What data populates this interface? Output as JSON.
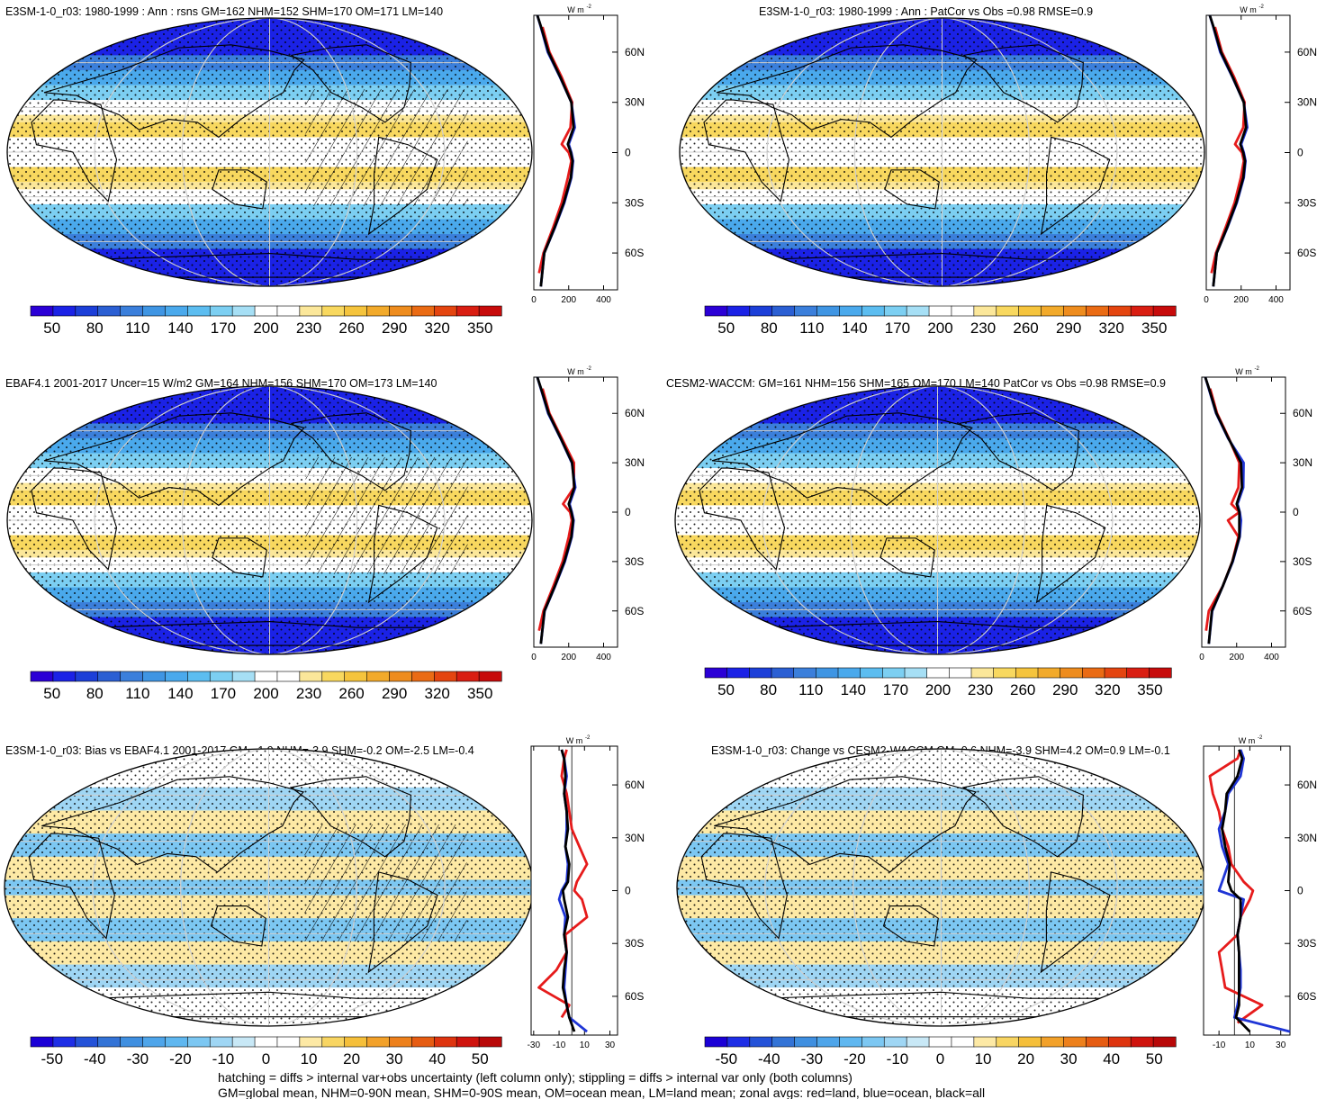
{
  "figure": {
    "footer_line1": "hatching = diffs > internal var+obs uncertainty (left column only); stippling = diffs > internal var only (both columns)",
    "footer_line2": "GM=global mean, NHM=0-90N mean, SHM=0-90S mean, OM=ocean mean, LM=land mean; zonal avgs: red=land, blue=ocean, black=all"
  },
  "chart_data": [
    {
      "type": "heatmap",
      "title": "E3SM-1-0_r03: 1980-1999 : Ann : rsns GM=162 NHM=152 SHM=170 OM=171 LM=140",
      "projection": "robinson",
      "colorbar_labels": [
        "50",
        "80",
        "110",
        "140",
        "170",
        "200",
        "230",
        "260",
        "290",
        "320",
        "350"
      ],
      "colorbar_range": [
        35,
        365
      ],
      "hatching": true,
      "zonal_panel": {
        "type": "line",
        "unit_label": "W m",
        "x_ticks": [
          "0",
          "200",
          "400"
        ],
        "x_range": [
          0,
          480
        ],
        "lat_labels": [
          "60N",
          "30N",
          "0",
          "30S",
          "60S"
        ],
        "lat_values": [
          60,
          30,
          0,
          -30,
          -60
        ],
        "lat_range": [
          -82,
          82
        ],
        "series": [
          {
            "name": "land",
            "color": "#e61b1b",
            "lat": [
              -72,
              -60,
              -45,
              -30,
              -15,
              -5,
              0,
              5,
              15,
              30,
              45,
              60,
              75
            ],
            "values": [
              30,
              55,
              110,
              160,
              195,
              215,
              200,
              160,
              210,
              220,
              160,
              90,
              50
            ]
          },
          {
            "name": "ocean",
            "color": "#1f35d6",
            "lat": [
              -80,
              -60,
              -45,
              -30,
              -15,
              -5,
              0,
              5,
              15,
              30,
              45,
              60,
              75,
              82
            ],
            "values": [
              40,
              60,
              120,
              175,
              215,
              225,
              215,
              200,
              235,
              215,
              150,
              80,
              40,
              20
            ]
          },
          {
            "name": "all",
            "color": "#000000",
            "lat": [
              -80,
              -60,
              -45,
              -30,
              -15,
              -5,
              0,
              5,
              15,
              30,
              45,
              60,
              75,
              82
            ],
            "values": [
              40,
              60,
              118,
              172,
              212,
              222,
              212,
              195,
              228,
              215,
              152,
              84,
              42,
              20
            ]
          }
        ]
      }
    },
    {
      "type": "heatmap",
      "title": "E3SM-1-0_r03: 1980-1999 : Ann : PatCor vs Obs =0.98 RMSE=0.9",
      "projection": "robinson",
      "colorbar_labels": [
        "50",
        "80",
        "110",
        "140",
        "170",
        "200",
        "230",
        "260",
        "290",
        "320",
        "350"
      ],
      "colorbar_range": [
        35,
        365
      ],
      "hatching": false,
      "zonal_panel": {
        "type": "line",
        "unit_label": "W m",
        "x_ticks": [
          "0",
          "200",
          "400"
        ],
        "x_range": [
          0,
          480
        ],
        "lat_labels": [
          "60N",
          "30N",
          "0",
          "30S",
          "60S"
        ],
        "lat_values": [
          60,
          30,
          0,
          -30,
          -60
        ],
        "lat_range": [
          -82,
          82
        ],
        "series": [
          {
            "name": "land",
            "color": "#e61b1b",
            "lat": [
              -72,
              -60,
              -45,
              -30,
              -15,
              -5,
              0,
              5,
              15,
              30,
              45,
              60,
              75
            ],
            "values": [
              30,
              55,
              110,
              162,
              198,
              215,
              205,
              165,
              212,
              220,
              160,
              90,
              50
            ]
          },
          {
            "name": "ocean",
            "color": "#1f35d6",
            "lat": [
              -80,
              -60,
              -45,
              -30,
              -15,
              -5,
              0,
              5,
              15,
              30,
              45,
              60,
              75,
              82
            ],
            "values": [
              40,
              60,
              120,
              175,
              215,
              225,
              215,
              200,
              235,
              215,
              150,
              80,
              40,
              20
            ]
          },
          {
            "name": "all",
            "color": "#000000",
            "lat": [
              -80,
              -60,
              -45,
              -30,
              -15,
              -5,
              0,
              5,
              15,
              30,
              45,
              60,
              75,
              82
            ],
            "values": [
              40,
              60,
              118,
              172,
              212,
              222,
              212,
              195,
              228,
              215,
              152,
              84,
              42,
              20
            ]
          }
        ]
      }
    },
    {
      "type": "heatmap",
      "title": "EBAF4.1 2001-2017 Uncer=15 W/m2 GM=164 NHM=156 SHM=170 OM=173 LM=140",
      "projection": "robinson",
      "colorbar_labels": [
        "50",
        "80",
        "110",
        "140",
        "170",
        "200",
        "230",
        "260",
        "290",
        "320",
        "350"
      ],
      "colorbar_range": [
        35,
        365
      ],
      "hatching": true,
      "zonal_panel": {
        "type": "line",
        "unit_label": "W m",
        "x_ticks": [
          "0",
          "200",
          "400"
        ],
        "x_range": [
          0,
          480
        ],
        "lat_labels": [
          "60N",
          "30N",
          "0",
          "30S",
          "60S"
        ],
        "lat_values": [
          60,
          30,
          0,
          -30,
          -60
        ],
        "lat_range": [
          -82,
          82
        ],
        "series": [
          {
            "name": "land",
            "color": "#e61b1b",
            "lat": [
              -72,
              -60,
              -45,
              -30,
              -15,
              -5,
              0,
              5,
              15,
              30,
              45,
              60,
              75
            ],
            "values": [
              30,
              55,
              112,
              165,
              200,
              218,
              208,
              168,
              230,
              230,
              160,
              90,
              50
            ]
          },
          {
            "name": "ocean",
            "color": "#1f35d6",
            "lat": [
              -80,
              -60,
              -45,
              -30,
              -15,
              -5,
              0,
              5,
              15,
              30,
              45,
              60,
              75,
              82
            ],
            "values": [
              40,
              62,
              122,
              178,
              218,
              228,
              218,
              205,
              238,
              218,
              152,
              82,
              40,
              20
            ]
          },
          {
            "name": "all",
            "color": "#000000",
            "lat": [
              -80,
              -60,
              -45,
              -30,
              -15,
              -5,
              0,
              5,
              15,
              30,
              45,
              60,
              75,
              82
            ],
            "values": [
              40,
              61,
              120,
              175,
              215,
              225,
              215,
              200,
              232,
              220,
              154,
              85,
              42,
              20
            ]
          }
        ]
      }
    },
    {
      "type": "heatmap",
      "title": "CESM2-WACCM: GM=161 NHM=156 SHM=165 OM=170 LM=140 PatCor vs Obs =0.98 RMSE=0.9",
      "projection": "robinson",
      "colorbar_labels": [
        "50",
        "80",
        "110",
        "140",
        "170",
        "200",
        "230",
        "260",
        "290",
        "320",
        "350"
      ],
      "colorbar_range": [
        35,
        365
      ],
      "hatching": false,
      "zonal_panel": {
        "type": "line",
        "unit_label": "W m",
        "x_ticks": [
          "0",
          "200",
          "400"
        ],
        "x_range": [
          0,
          480
        ],
        "lat_labels": [
          "60N",
          "30N",
          "0",
          "30S",
          "60S"
        ],
        "lat_values": [
          60,
          30,
          0,
          -30,
          -60
        ],
        "lat_range": [
          -82,
          82
        ],
        "series": [
          {
            "name": "land",
            "color": "#e61b1b",
            "lat": [
              -72,
              -60,
              -45,
              -30,
              -15,
              -5,
              0,
              5,
              15,
              30,
              45,
              60,
              75
            ],
            "values": [
              25,
              40,
              120,
              175,
              210,
              150,
              215,
              170,
              210,
              215,
              155,
              88,
              48
            ]
          },
          {
            "name": "ocean",
            "color": "#1f35d6",
            "lat": [
              -80,
              -60,
              -45,
              -30,
              -15,
              -5,
              0,
              5,
              15,
              30,
              45,
              60,
              75,
              82
            ],
            "values": [
              40,
              60,
              120,
              178,
              218,
              225,
              218,
              205,
              238,
              240,
              150,
              82,
              40,
              20
            ]
          },
          {
            "name": "all",
            "color": "#000000",
            "lat": [
              -80,
              -60,
              -45,
              -30,
              -15,
              -5,
              0,
              5,
              15,
              30,
              45,
              60,
              75,
              82
            ],
            "values": [
              40,
              58,
              120,
              176,
              215,
              215,
              216,
              200,
              230,
              225,
              152,
              84,
              42,
              20
            ]
          }
        ]
      }
    },
    {
      "type": "heatmap",
      "title": "E3SM-1-0_r03: Bias vs EBAF4.1 2001-2017 GM=-1.9 NHM=-3.9 SHM=-0.2 OM=-2.5 LM=-0.4",
      "projection": "robinson",
      "colorbar_labels": [
        "-50",
        "-40",
        "-30",
        "-20",
        "-10",
        "0",
        "10",
        "20",
        "30",
        "40",
        "50"
      ],
      "colorbar_range": [
        -55,
        55
      ],
      "hatching": true,
      "zonal_panel": {
        "type": "line",
        "unit_label": "W m",
        "x_ticks": [
          "-30",
          "-10",
          "10",
          "30"
        ],
        "x_range": [
          -32,
          36
        ],
        "zero_line": true,
        "lat_labels": [
          "60N",
          "30N",
          "0",
          "30S",
          "60S"
        ],
        "lat_values": [
          60,
          30,
          0,
          -30,
          -60
        ],
        "lat_range": [
          -82,
          82
        ],
        "series": [
          {
            "name": "land",
            "color": "#e61b1b",
            "lat": [
              -72,
              -65,
              -55,
              -45,
              -35,
              -25,
              -15,
              -5,
              0,
              5,
              15,
              25,
              35,
              45,
              55,
              65,
              75,
              80
            ],
            "values": [
              -8,
              -2,
              -26,
              -12,
              -4,
              -5,
              12,
              8,
              2,
              4,
              12,
              6,
              0,
              -2,
              -4,
              -8,
              -6,
              -4
            ]
          },
          {
            "name": "ocean",
            "color": "#1f35d6",
            "lat": [
              -80,
              -72,
              -65,
              -55,
              -45,
              -35,
              -25,
              -15,
              -5,
              0,
              5,
              15,
              25,
              35,
              45,
              55,
              65,
              75,
              80
            ],
            "values": [
              12,
              -2,
              -4,
              -6,
              -5,
              -4,
              -6,
              -5,
              -10,
              -8,
              -4,
              -3,
              -5,
              -4,
              -4,
              -6,
              -4,
              -6,
              -8
            ]
          },
          {
            "name": "all",
            "color": "#000000",
            "lat": [
              -80,
              -72,
              -65,
              -55,
              -45,
              -35,
              -25,
              -15,
              -5,
              0,
              5,
              15,
              25,
              35,
              45,
              55,
              65,
              75,
              80
            ],
            "values": [
              2,
              -2,
              -4,
              -7,
              -6,
              -4,
              -6,
              -3,
              -6,
              -7,
              -3,
              -2,
              -5,
              -3,
              -4,
              -6,
              -5,
              -6,
              -8
            ]
          }
        ]
      }
    },
    {
      "type": "heatmap",
      "title": "E3SM-1-0_r03: Change vs CESM2-WACCM GM=0.6 NHM=-3.9 SHM=4.2 OM=0.9 LM=-0.1",
      "projection": "robinson",
      "colorbar_labels": [
        "-50",
        "-40",
        "-30",
        "-20",
        "-10",
        "0",
        "10",
        "20",
        "30",
        "40",
        "50"
      ],
      "colorbar_range": [
        -55,
        55
      ],
      "hatching": false,
      "zonal_panel": {
        "type": "line",
        "unit_label": "W m",
        "x_ticks": [
          "-10",
          "10",
          "30"
        ],
        "x_range": [
          -20,
          36
        ],
        "zero_line": true,
        "lat_labels": [
          "60N",
          "30N",
          "0",
          "30S",
          "60S"
        ],
        "lat_values": [
          60,
          30,
          0,
          -30,
          -60
        ],
        "lat_range": [
          -82,
          82
        ],
        "series": [
          {
            "name": "land",
            "color": "#e61b1b",
            "lat": [
              -75,
              -65,
              -55,
              -45,
              -35,
              -25,
              -15,
              -5,
              0,
              5,
              15,
              25,
              35,
              45,
              55,
              65,
              75,
              80
            ],
            "values": [
              2,
              18,
              -6,
              -8,
              -10,
              2,
              4,
              10,
              12,
              6,
              -2,
              -4,
              -8,
              -10,
              -14,
              -16,
              2,
              4
            ]
          },
          {
            "name": "ocean",
            "color": "#1f35d6",
            "lat": [
              -80,
              -72,
              -65,
              -55,
              -45,
              -35,
              -25,
              -15,
              -5,
              0,
              5,
              15,
              25,
              35,
              45,
              55,
              65,
              75,
              80
            ],
            "values": [
              36,
              0,
              2,
              4,
              4,
              3,
              2,
              4,
              6,
              -10,
              -8,
              -4,
              -8,
              -10,
              -6,
              -4,
              4,
              6,
              4
            ]
          },
          {
            "name": "all",
            "color": "#000000",
            "lat": [
              -80,
              -72,
              -65,
              -55,
              -45,
              -35,
              -25,
              -15,
              -5,
              0,
              5,
              15,
              25,
              35,
              45,
              55,
              65,
              75,
              80
            ],
            "values": [
              10,
              1,
              3,
              3,
              3,
              3,
              2,
              4,
              4,
              -2,
              -4,
              -3,
              -6,
              -8,
              -6,
              -5,
              2,
              5,
              3
            ]
          }
        ]
      }
    }
  ]
}
